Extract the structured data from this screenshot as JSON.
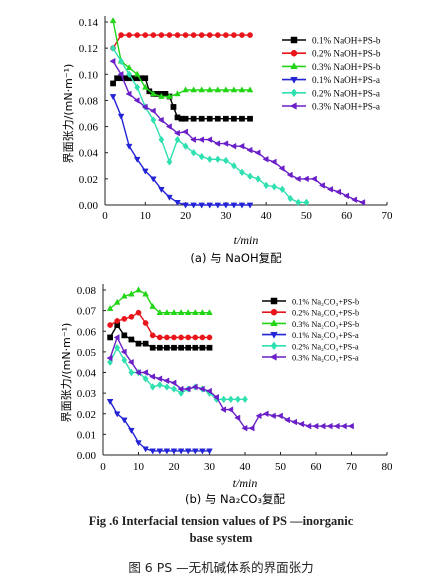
{
  "figure": {
    "caption_en_line1": "Fig .6    Interfacial tension values of PS —inorganic",
    "caption_en_line2": "base system",
    "caption_zh": "图 6    PS —无机碱体系的界面张力"
  },
  "chart_data": [
    {
      "type": "line",
      "subtitle": "(a) 与 NaOH复配",
      "xlabel": "t/min",
      "ylabel": "界面张力/(mN·m⁻¹)",
      "xlim": [
        0,
        70
      ],
      "ylim": [
        0,
        0.14
      ],
      "xticks": [
        0,
        10,
        20,
        30,
        40,
        50,
        60,
        70
      ],
      "yticks": [
        0.0,
        0.02,
        0.04,
        0.06,
        0.08,
        0.1,
        0.12,
        0.14
      ],
      "ytick_labels": [
        "0.00",
        "0.02",
        "0.04",
        "0.06",
        "0.08",
        "0.10",
        "0.12",
        "0.14"
      ],
      "legend_position": "top-right",
      "series": [
        {
          "name": "0.1% NaOH+PS-b",
          "color": "#000000",
          "marker": "square",
          "x": [
            2,
            3,
            4,
            5,
            6,
            7,
            8,
            9,
            10,
            11,
            12,
            13,
            14,
            15,
            16,
            17,
            18,
            19,
            20,
            22,
            24,
            26,
            28,
            30,
            32,
            34,
            36
          ],
          "y": [
            0.093,
            0.097,
            0.097,
            0.097,
            0.097,
            0.097,
            0.097,
            0.097,
            0.097,
            0.087,
            0.085,
            0.085,
            0.085,
            0.085,
            0.083,
            0.075,
            0.067,
            0.066,
            0.066,
            0.066,
            0.066,
            0.066,
            0.066,
            0.066,
            0.066,
            0.066,
            0.066
          ]
        },
        {
          "name": "0.2% NaOH+PS-b",
          "color": "#e8141a",
          "marker": "circle",
          "x": [
            2,
            4,
            6,
            8,
            10,
            12,
            14,
            16,
            18,
            20,
            22,
            24,
            26,
            28,
            30,
            32,
            34,
            36
          ],
          "y": [
            0.12,
            0.13,
            0.13,
            0.13,
            0.13,
            0.13,
            0.13,
            0.13,
            0.13,
            0.13,
            0.13,
            0.13,
            0.13,
            0.13,
            0.13,
            0.13,
            0.13,
            0.13
          ]
        },
        {
          "name": "0.3% NaOH+PS-b",
          "color": "#22d617",
          "marker": "triangle-up",
          "x": [
            2,
            4,
            6,
            8,
            10,
            12,
            14,
            16,
            18,
            20,
            22,
            24,
            26,
            28,
            30,
            32,
            34,
            36
          ],
          "y": [
            0.141,
            0.11,
            0.105,
            0.1,
            0.09,
            0.085,
            0.083,
            0.083,
            0.085,
            0.088,
            0.088,
            0.088,
            0.088,
            0.088,
            0.088,
            0.088,
            0.088,
            0.088
          ]
        },
        {
          "name": "0.1% NaOH+PS-a",
          "color": "#2323d6",
          "marker": "triangle-down",
          "x": [
            2,
            4,
            6,
            8,
            10,
            12,
            14,
            16,
            18,
            20,
            22,
            24,
            26,
            28,
            30,
            32,
            34,
            36
          ],
          "y": [
            0.083,
            0.068,
            0.045,
            0.035,
            0.026,
            0.02,
            0.012,
            0.006,
            0.002,
            0.0,
            0.0,
            0.0,
            0.0,
            0.0,
            0.0,
            0.0,
            0.0,
            0.0
          ]
        },
        {
          "name": "0.2% NaOH+PS-a",
          "color": "#2fe0b0",
          "marker": "diamond",
          "x": [
            2,
            4,
            6,
            8,
            10,
            12,
            14,
            16,
            18,
            20,
            22,
            24,
            26,
            28,
            30,
            32,
            34,
            36,
            38,
            40,
            42,
            44,
            46,
            48,
            50
          ],
          "y": [
            0.12,
            0.11,
            0.1,
            0.09,
            0.075,
            0.065,
            0.05,
            0.033,
            0.05,
            0.045,
            0.04,
            0.037,
            0.035,
            0.035,
            0.034,
            0.03,
            0.025,
            0.022,
            0.02,
            0.015,
            0.014,
            0.012,
            0.005,
            0.002,
            0.002
          ]
        },
        {
          "name": "0.3% NaOH+PS-a",
          "color": "#6a1fc8",
          "marker": "triangle-left",
          "x": [
            2,
            4,
            6,
            8,
            10,
            12,
            14,
            16,
            18,
            20,
            22,
            24,
            26,
            28,
            30,
            32,
            34,
            36,
            38,
            40,
            42,
            44,
            46,
            48,
            50,
            52,
            54,
            56,
            58,
            60,
            62,
            64
          ],
          "y": [
            0.11,
            0.1,
            0.085,
            0.08,
            0.075,
            0.072,
            0.065,
            0.06,
            0.055,
            0.056,
            0.05,
            0.05,
            0.05,
            0.047,
            0.047,
            0.045,
            0.045,
            0.042,
            0.04,
            0.035,
            0.033,
            0.028,
            0.023,
            0.02,
            0.02,
            0.02,
            0.015,
            0.012,
            0.01,
            0.007,
            0.004,
            0.002
          ]
        }
      ]
    },
    {
      "type": "line",
      "subtitle": "(b) 与 Na₂CO₃复配",
      "xlabel": "t/min",
      "ylabel": "界面张力/(mN·m⁻¹)",
      "xlim": [
        0,
        80
      ],
      "ylim": [
        0,
        0.08
      ],
      "xticks": [
        0,
        10,
        20,
        30,
        40,
        50,
        60,
        70,
        80
      ],
      "yticks": [
        0.0,
        0.01,
        0.02,
        0.03,
        0.04,
        0.05,
        0.06,
        0.07,
        0.08
      ],
      "ytick_labels": [
        "0.00",
        "0.01",
        "0.02",
        "0.03",
        "0.04",
        "0.05",
        "0.06",
        "0.07",
        "0.08"
      ],
      "legend_position": "top-right",
      "series": [
        {
          "name": "0.1% Na₂CO₃+PS-b",
          "color": "#000000",
          "marker": "square",
          "x": [
            2,
            4,
            6,
            8,
            10,
            12,
            14,
            16,
            18,
            20,
            22,
            24,
            26,
            28,
            30
          ],
          "y": [
            0.057,
            0.063,
            0.058,
            0.056,
            0.054,
            0.054,
            0.052,
            0.052,
            0.052,
            0.052,
            0.052,
            0.052,
            0.052,
            0.052,
            0.052
          ]
        },
        {
          "name": "0.2% Na₂CO₃+PS-b",
          "color": "#e8141a",
          "marker": "circle",
          "x": [
            2,
            4,
            6,
            8,
            10,
            12,
            14,
            16,
            18,
            20,
            22,
            24,
            26,
            28,
            30
          ],
          "y": [
            0.063,
            0.065,
            0.066,
            0.067,
            0.069,
            0.064,
            0.058,
            0.057,
            0.057,
            0.057,
            0.057,
            0.057,
            0.057,
            0.057,
            0.057
          ]
        },
        {
          "name": "0.3% Na₂CO₃+PS-b",
          "color": "#22d617",
          "marker": "triangle-up",
          "x": [
            2,
            4,
            6,
            8,
            10,
            12,
            14,
            16,
            18,
            20,
            22,
            24,
            26,
            28,
            30
          ],
          "y": [
            0.071,
            0.074,
            0.077,
            0.078,
            0.08,
            0.078,
            0.072,
            0.069,
            0.069,
            0.069,
            0.069,
            0.069,
            0.069,
            0.069,
            0.069
          ]
        },
        {
          "name": "0.1% Na₂CO₃+PS-a",
          "color": "#2323d6",
          "marker": "triangle-down",
          "x": [
            2,
            4,
            6,
            8,
            10,
            12,
            14,
            16,
            18,
            20,
            22,
            24,
            26,
            28,
            30
          ],
          "y": [
            0.026,
            0.02,
            0.017,
            0.012,
            0.006,
            0.003,
            0.002,
            0.002,
            0.002,
            0.002,
            0.002,
            0.002,
            0.002,
            0.002,
            0.002
          ]
        },
        {
          "name": "0.2% Na₂CO₃+PS-a",
          "color": "#2fe0b0",
          "marker": "diamond",
          "x": [
            2,
            4,
            6,
            8,
            10,
            12,
            14,
            16,
            18,
            20,
            22,
            24,
            26,
            28,
            30,
            32,
            34,
            36,
            38,
            40
          ],
          "y": [
            0.045,
            0.052,
            0.046,
            0.04,
            0.04,
            0.037,
            0.033,
            0.034,
            0.033,
            0.032,
            0.03,
            0.032,
            0.033,
            0.032,
            0.03,
            0.027,
            0.027,
            0.027,
            0.027,
            0.027
          ]
        },
        {
          "name": "0.3% Na₂CO₃+PS-a",
          "color": "#6a1fc8",
          "marker": "triangle-left",
          "x": [
            2,
            4,
            6,
            8,
            10,
            12,
            14,
            16,
            18,
            20,
            22,
            24,
            26,
            28,
            30,
            32,
            34,
            36,
            38,
            40,
            42,
            44,
            46,
            48,
            50,
            52,
            54,
            56,
            58,
            60,
            62,
            64,
            66,
            68,
            70
          ],
          "y": [
            0.047,
            0.057,
            0.05,
            0.045,
            0.04,
            0.04,
            0.038,
            0.037,
            0.036,
            0.035,
            0.032,
            0.032,
            0.033,
            0.032,
            0.031,
            0.028,
            0.022,
            0.022,
            0.018,
            0.013,
            0.013,
            0.019,
            0.02,
            0.019,
            0.019,
            0.017,
            0.016,
            0.015,
            0.014,
            0.014,
            0.014,
            0.014,
            0.014,
            0.014,
            0.014
          ]
        }
      ]
    }
  ]
}
